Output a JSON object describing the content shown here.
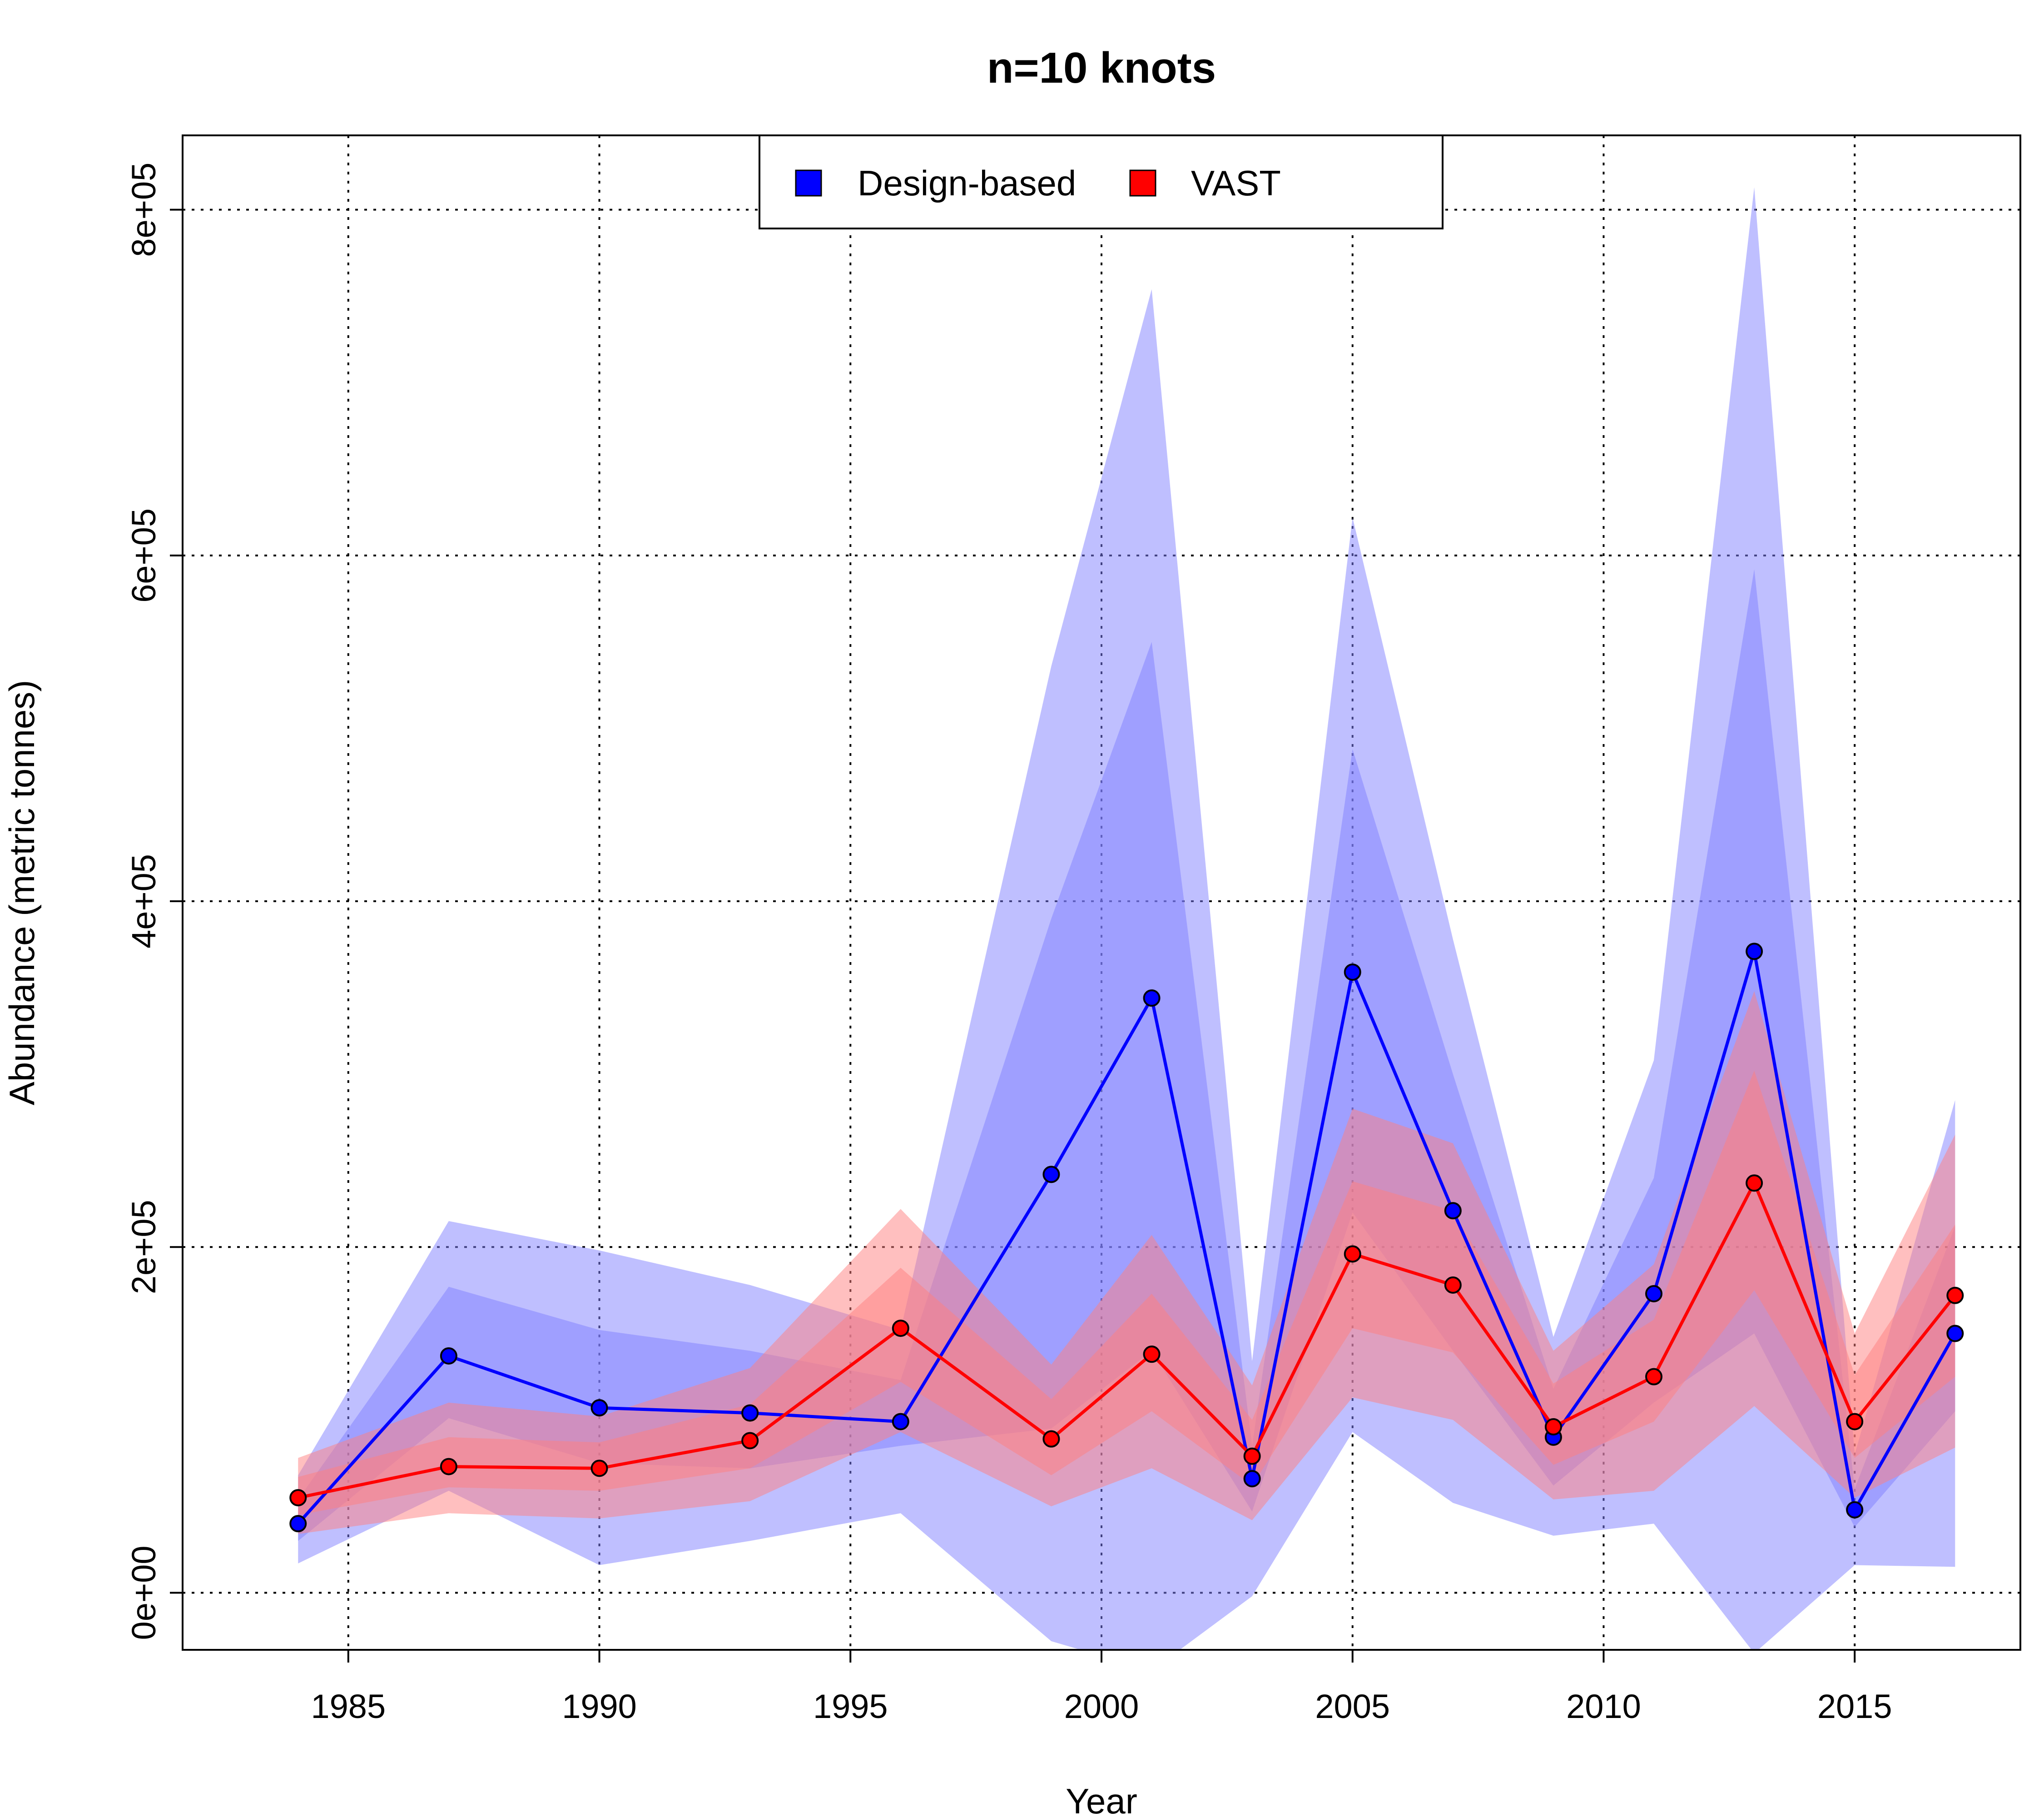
{
  "chart_data": {
    "type": "line",
    "title": "n=10 knots",
    "xlabel": "Year",
    "ylabel": "Abundance (metric tonnes)",
    "xlim": [
      1981.7,
      2018.3
    ],
    "ylim": [
      -33000,
      843000
    ],
    "x_ticks": [
      1985,
      1990,
      1995,
      2000,
      2005,
      2010,
      2015
    ],
    "x_tick_labels": [
      "1985",
      "1990",
      "1995",
      "2000",
      "2005",
      "2010",
      "2015"
    ],
    "y_ticks": [
      0,
      200000,
      400000,
      600000,
      800000
    ],
    "y_tick_labels": [
      "0e+00",
      "2e+05",
      "4e+05",
      "6e+05",
      "8e+05"
    ],
    "grid": true,
    "legend_position": "top-center",
    "legend": [
      {
        "label": "Design-based",
        "color": "#0000ff"
      },
      {
        "label": "VAST",
        "color": "#ff0000"
      }
    ],
    "x": [
      1984,
      1987,
      1990,
      1993,
      1996,
      1999,
      2001,
      2003,
      2005,
      2007,
      2009,
      2011,
      2013,
      2015,
      2017
    ],
    "series": [
      {
        "name": "Design-based",
        "color": "#0000ff",
        "band_color": "#8080ff",
        "values": [
          40000,
          137000,
          107000,
          104000,
          99000,
          242000,
          344000,
          66000,
          359000,
          221000,
          90000,
          173000,
          371000,
          48000,
          150000
        ],
        "ci_inner_lower": [
          30000,
          101000,
          75000,
          72000,
          85000,
          95000,
          140000,
          47000,
          220000,
          140000,
          62000,
          110000,
          150000,
          38000,
          105000
        ],
        "ci_inner_upper": [
          54000,
          177000,
          152000,
          140000,
          123000,
          390000,
          550000,
          85000,
          488000,
          300000,
          118000,
          240000,
          592000,
          60000,
          212000
        ],
        "ci_outer_lower": [
          17000,
          59000,
          16000,
          30000,
          46000,
          -28000,
          -45000,
          -2000,
          93000,
          52000,
          33000,
          40000,
          -35000,
          16000,
          15000
        ],
        "ci_outer_upper": [
          68000,
          215000,
          198000,
          178000,
          152000,
          536000,
          754000,
          134000,
          622000,
          378000,
          148000,
          308000,
          813000,
          80000,
          285000
        ]
      },
      {
        "name": "VAST",
        "color": "#ff0000",
        "band_color": "#ff7f7f",
        "values": [
          55000,
          73000,
          72000,
          88000,
          153000,
          89000,
          138000,
          79000,
          196000,
          178000,
          96000,
          125000,
          237000,
          99000,
          172000
        ],
        "ci_inner_lower": [
          45000,
          61000,
          59000,
          72000,
          122000,
          68000,
          105000,
          62000,
          153000,
          139000,
          74000,
          99000,
          175000,
          78000,
          125000
        ],
        "ci_inner_upper": [
          67000,
          90000,
          87000,
          109000,
          188000,
          112000,
          173000,
          100000,
          238000,
          221000,
          121000,
          158000,
          302000,
          126000,
          213000
        ],
        "ci_outer_lower": [
          34000,
          46000,
          43000,
          53000,
          93000,
          50000,
          72000,
          42000,
          113000,
          100000,
          54000,
          59000,
          108000,
          55000,
          84000
        ],
        "ci_outer_upper": [
          78000,
          110000,
          102000,
          130000,
          222000,
          132000,
          207000,
          120000,
          280000,
          260000,
          140000,
          190000,
          348000,
          150000,
          265000
        ]
      }
    ]
  }
}
